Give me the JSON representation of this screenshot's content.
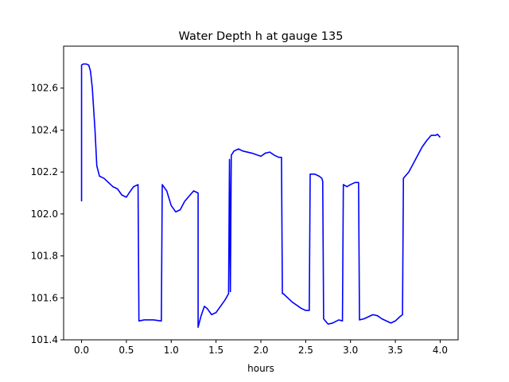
{
  "chart_data": {
    "type": "line",
    "title": "Water Depth h at gauge 135",
    "xlabel": "hours",
    "ylabel": "",
    "xlim": [
      -0.2,
      4.2
    ],
    "ylim": [
      101.4,
      102.8
    ],
    "xticks": [
      "0.0",
      "0.5",
      "1.0",
      "1.5",
      "2.0",
      "2.5",
      "3.0",
      "3.5",
      "4.0"
    ],
    "yticks": [
      "101.4",
      "101.6",
      "101.8",
      "102.0",
      "102.2",
      "102.4",
      "102.6"
    ],
    "grid": false,
    "series": [
      {
        "color": "#0000ff",
        "x": [
          0.0,
          0.0,
          0.02,
          0.05,
          0.08,
          0.1,
          0.12,
          0.15,
          0.17,
          0.2,
          0.25,
          0.3,
          0.35,
          0.4,
          0.45,
          0.5,
          0.53,
          0.58,
          0.63,
          0.64,
          0.7,
          0.8,
          0.89,
          0.9,
          0.95,
          1.0,
          1.05,
          1.1,
          1.15,
          1.25,
          1.3,
          1.3,
          1.33,
          1.37,
          1.4,
          1.45,
          1.5,
          1.55,
          1.6,
          1.64,
          1.65,
          1.66,
          1.65,
          1.66,
          1.67,
          1.7,
          1.75,
          1.8,
          1.9,
          2.0,
          2.05,
          2.1,
          2.15,
          2.2,
          2.23,
          2.24,
          2.23,
          2.24,
          2.25,
          2.3,
          2.35,
          2.45,
          2.5,
          2.54,
          2.55,
          2.6,
          2.65,
          2.68,
          2.69,
          2.7,
          2.75,
          2.8,
          2.87,
          2.91,
          2.92,
          2.96,
          3.0,
          3.05,
          3.09,
          3.1,
          3.15,
          3.2,
          3.25,
          3.3,
          3.35,
          3.4,
          3.45,
          3.5,
          3.55,
          3.58,
          3.59,
          3.65,
          3.7,
          3.75,
          3.8,
          3.85,
          3.9,
          3.92,
          3.95,
          3.97,
          4.0
        ],
        "y": [
          102.06,
          102.71,
          102.715,
          102.715,
          102.71,
          102.68,
          102.6,
          102.4,
          102.23,
          102.18,
          102.17,
          102.15,
          102.13,
          102.12,
          102.09,
          102.08,
          102.1,
          102.13,
          102.14,
          101.49,
          101.495,
          101.495,
          101.49,
          102.14,
          102.11,
          102.04,
          102.01,
          102.02,
          102.06,
          102.11,
          102.1,
          101.46,
          101.51,
          101.56,
          101.55,
          101.52,
          101.53,
          101.56,
          101.59,
          101.62,
          102.26,
          101.63,
          102.26,
          101.63,
          102.28,
          102.3,
          102.31,
          102.3,
          102.29,
          102.275,
          102.29,
          102.295,
          102.28,
          102.27,
          102.27,
          101.63,
          102.27,
          101.62,
          101.62,
          101.6,
          101.58,
          101.55,
          101.54,
          101.54,
          102.19,
          102.19,
          102.18,
          102.17,
          102.155,
          101.5,
          101.475,
          101.48,
          101.495,
          101.49,
          102.14,
          102.13,
          102.14,
          102.15,
          102.15,
          101.495,
          101.5,
          101.51,
          101.52,
          101.515,
          101.5,
          101.49,
          101.48,
          101.49,
          101.51,
          101.52,
          102.17,
          102.2,
          102.24,
          102.28,
          102.32,
          102.35,
          102.375,
          102.375,
          102.375,
          102.38,
          102.365
        ]
      }
    ]
  }
}
